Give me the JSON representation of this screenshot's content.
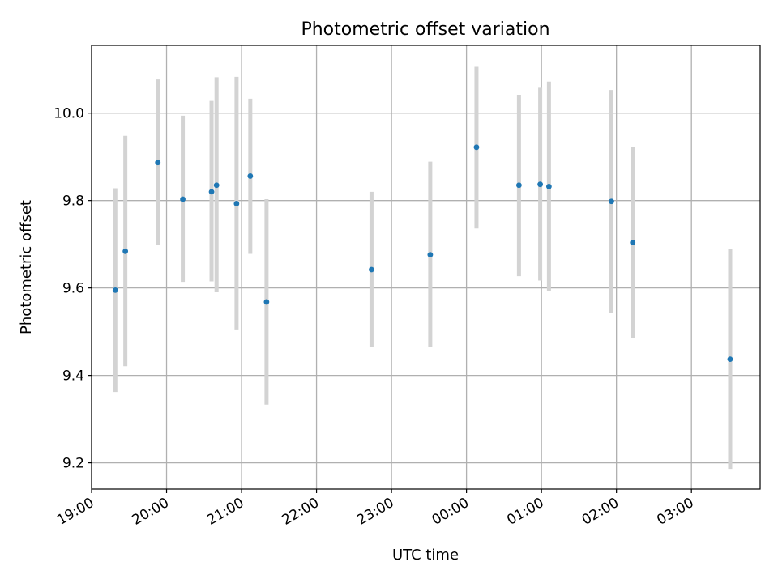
{
  "chart_data": {
    "type": "scatter",
    "title": "Photometric offset variation",
    "xlabel": "UTC time",
    "ylabel": "Photometric offset",
    "x_unit": "hours (UTC clock time, continuing past midnight)",
    "xlim": [
      "19:00",
      "03:55"
    ],
    "ylim": [
      9.14,
      10.155
    ],
    "x_ticks": [
      "19:00",
      "20:00",
      "21:00",
      "22:00",
      "23:00",
      "00:00",
      "01:00",
      "02:00",
      "03:00"
    ],
    "y_ticks": [
      "9.2",
      "9.4",
      "9.6",
      "9.8",
      "10.0"
    ],
    "grid": true,
    "colors": {
      "points": "#1f77b4",
      "errorbars": "#d3d3d3",
      "grid": "#b0b0b0"
    },
    "series": [
      {
        "points": [
          {
            "x": "19:19",
            "y": 9.595,
            "err_low": 9.362,
            "err_high": 9.828
          },
          {
            "x": "19:27",
            "y": 9.684,
            "err_low": 9.421,
            "err_high": 9.948
          },
          {
            "x": "19:53",
            "y": 9.887,
            "err_low": 9.699,
            "err_high": 10.077
          },
          {
            "x": "20:13",
            "y": 9.803,
            "err_low": 9.614,
            "err_high": 9.994
          },
          {
            "x": "20:36",
            "y": 9.82,
            "err_low": 9.615,
            "err_high": 10.028
          },
          {
            "x": "20:40",
            "y": 9.835,
            "err_low": 9.59,
            "err_high": 10.082
          },
          {
            "x": "20:56",
            "y": 9.793,
            "err_low": 9.505,
            "err_high": 10.083
          },
          {
            "x": "21:07",
            "y": 9.856,
            "err_low": 9.678,
            "err_high": 10.033
          },
          {
            "x": "21:20",
            "y": 9.568,
            "err_low": 9.333,
            "err_high": 9.803
          },
          {
            "x": "22:44",
            "y": 9.642,
            "err_low": 9.466,
            "err_high": 9.82
          },
          {
            "x": "23:31",
            "y": 9.676,
            "err_low": 9.466,
            "err_high": 9.889
          },
          {
            "x": "00:08",
            "y": 9.922,
            "err_low": 9.736,
            "err_high": 10.106
          },
          {
            "x": "00:42",
            "y": 9.835,
            "err_low": 9.627,
            "err_high": 10.042
          },
          {
            "x": "00:59",
            "y": 9.837,
            "err_low": 9.617,
            "err_high": 10.058
          },
          {
            "x": "01:06",
            "y": 9.832,
            "err_low": 9.592,
            "err_high": 10.072
          },
          {
            "x": "01:56",
            "y": 9.798,
            "err_low": 9.543,
            "err_high": 10.053
          },
          {
            "x": "02:13",
            "y": 9.704,
            "err_low": 9.485,
            "err_high": 9.922
          },
          {
            "x": "03:31",
            "y": 9.437,
            "err_low": 9.186,
            "err_high": 9.689
          }
        ]
      }
    ]
  }
}
